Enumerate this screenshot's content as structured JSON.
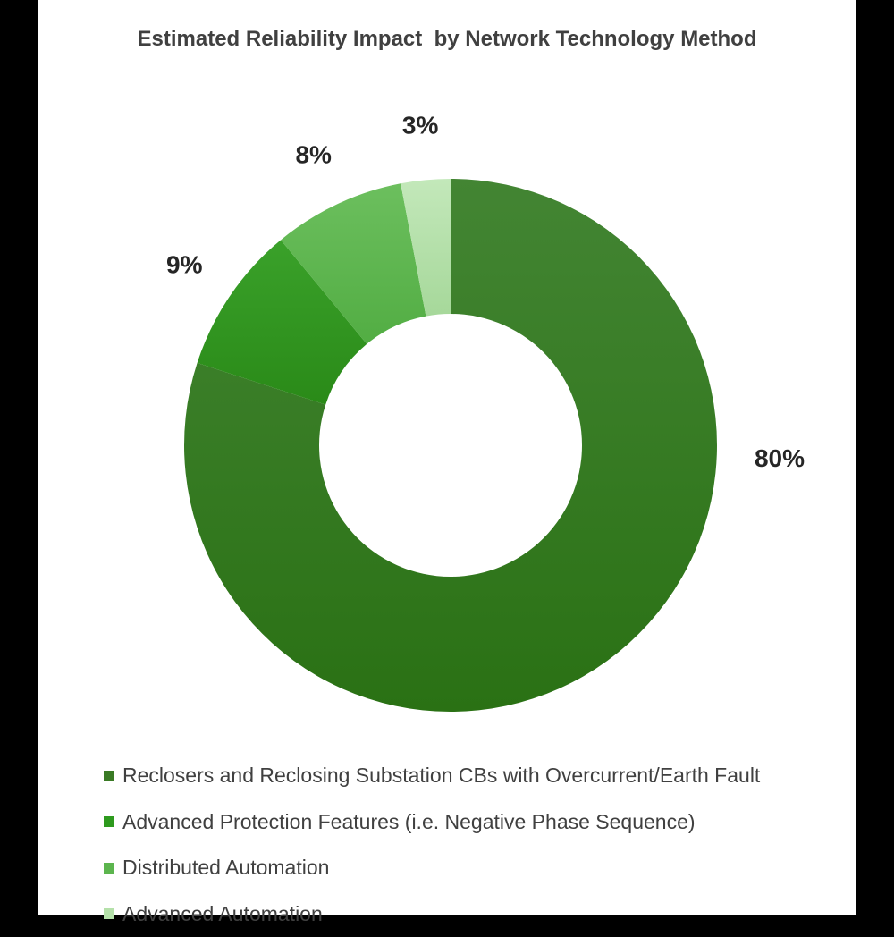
{
  "chart_data": {
    "type": "pie",
    "donut": true,
    "title": "Estimated Reliability Impact  by Network Technology Method",
    "categories": [
      "Reclosers and Reclosing Substation CBs with Overcurrent/Earth Fault",
      "Advanced Protection Features (i.e. Negative Phase Sequence)",
      "Distributed Automation",
      "Advanced Automation"
    ],
    "values": [
      80,
      9,
      8,
      3
    ],
    "data_labels": [
      "80%",
      "9%",
      "8%",
      "3%"
    ],
    "colors": [
      "#3a7a25",
      "#2e9a1e",
      "#5cb54e",
      "#b5e1aa"
    ],
    "legend_position": "bottom"
  }
}
